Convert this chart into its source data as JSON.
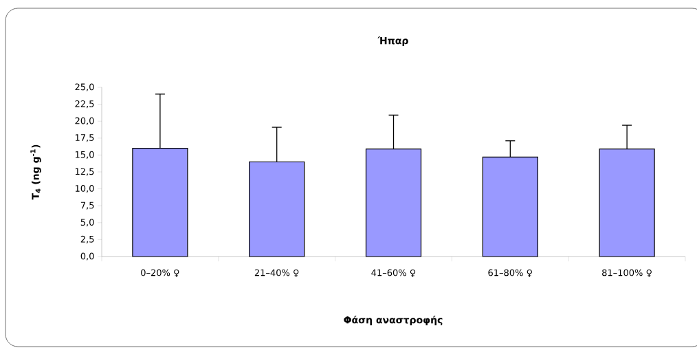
{
  "chart_data": {
    "type": "bar",
    "title": "Ήπαρ",
    "xlabel": "Φάση αναστροφής",
    "ylabel": "T$_{4}$ (ng g$^{-1}$)",
    "categories": [
      "0–20% ♀",
      "21–40% ♀",
      "41–60% ♀",
      "61–80% ♀",
      "81–100% ♀"
    ],
    "values": [
      16.0,
      14.0,
      15.9,
      14.7,
      15.9
    ],
    "errors": [
      [
        16.0,
        24.0
      ],
      [
        14.0,
        19.1
      ],
      [
        15.9,
        20.9
      ],
      [
        14.7,
        17.1
      ],
      [
        15.9,
        19.4
      ]
    ],
    "color": "#9999ff",
    "ylim": [
      0,
      25
    ],
    "yticks": [
      {
        "value": 0,
        "label": "0,0"
      },
      {
        "value": 2.5,
        "label": "2,5"
      },
      {
        "value": 5,
        "label": "5,0"
      },
      {
        "value": 7.5,
        "label": "7,5"
      },
      {
        "value": 10,
        "label": "10,0"
      },
      {
        "value": 12.5,
        "label": "12,5"
      },
      {
        "value": 15,
        "label": "15,0"
      },
      {
        "value": 17.5,
        "label": "17,5"
      },
      {
        "value": 20,
        "label": "20,0"
      },
      {
        "value": 22.5,
        "label": "22,5"
      },
      {
        "value": 25,
        "label": "25,0"
      }
    ]
  }
}
